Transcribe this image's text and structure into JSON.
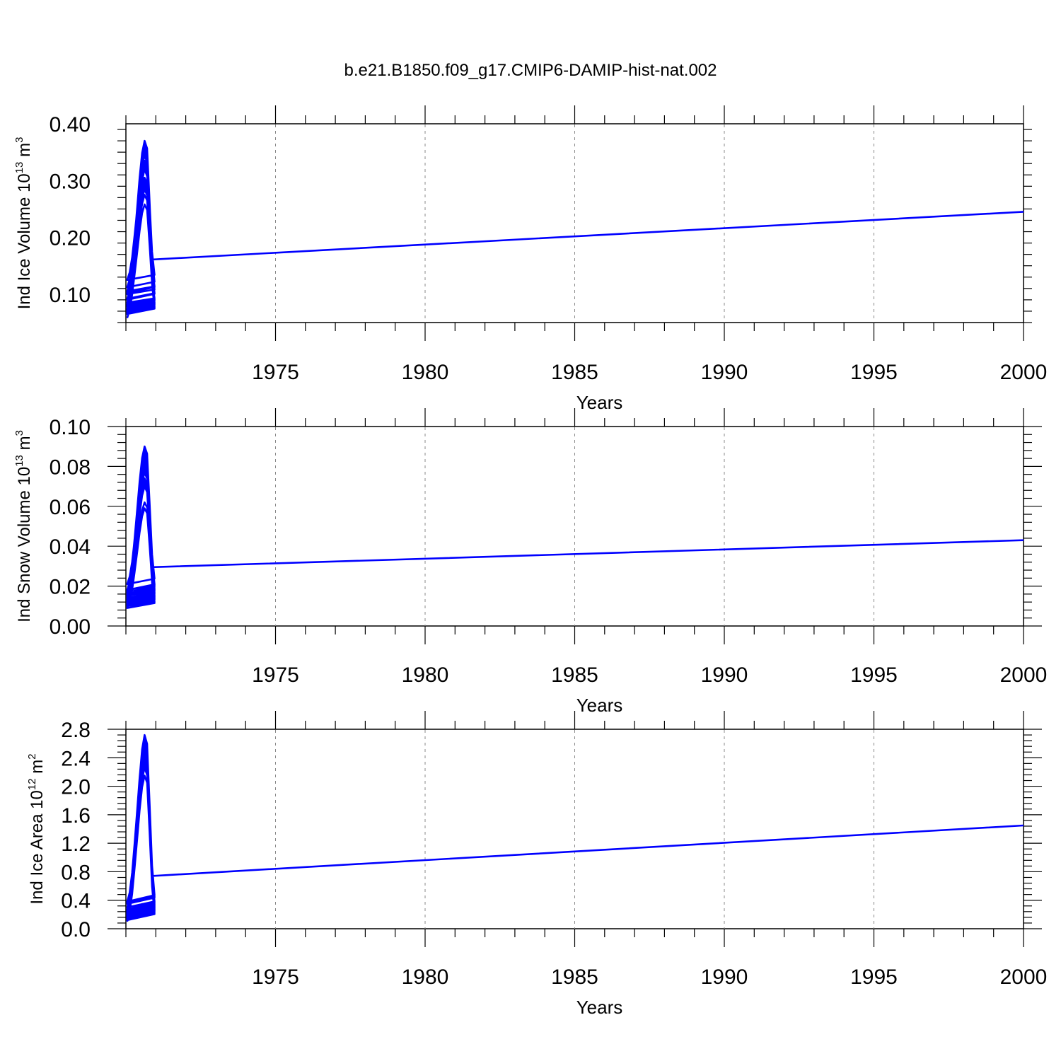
{
  "title": "b.e21.B1850.f09_g17.CMIP6-DAMIP-hist-nat.002",
  "colors": {
    "line": "#0000ff",
    "axis": "#000000",
    "grid": "#888888"
  },
  "chart_data": [
    {
      "type": "line",
      "title": "",
      "ylabel": "Ind Ice Volume 10",
      "ylabel_sup": "13",
      "ylabel_unit": " m",
      "ylabel_unit_sup": "3",
      "xlabel": "Years",
      "xlim": [
        1970.0,
        2000.0
      ],
      "ylim": [
        0.05,
        0.4
      ],
      "yticks": [
        0.1,
        0.2,
        0.3,
        0.4
      ],
      "ytick_labels": [
        "0.10",
        "0.20",
        "0.30",
        "0.40"
      ],
      "xticks": [
        1975,
        1980,
        1985,
        1990,
        1995,
        2000
      ],
      "xtick_labels": [
        "1975",
        "1980",
        "1985",
        "1990",
        "1995",
        "2000"
      ],
      "vlines": [
        1975,
        1980,
        1985,
        1990,
        1995
      ],
      "series": [
        {
          "name": "Ind Ice Volume",
          "color": "#0000ff",
          "monthly": true,
          "start_year": 1970,
          "peaks": [
            0.285,
            0.32,
            0.355,
            0.35,
            0.33,
            0.345,
            0.345,
            0.345,
            0.345,
            0.305,
            0.355,
            0.295,
            0.29,
            0.335,
            0.305,
            0.32,
            0.35,
            0.325,
            0.35,
            0.32,
            0.275,
            0.3,
            0.258,
            0.3,
            0.345,
            0.32,
            0.325,
            0.365,
            0.358,
            0.37
          ],
          "troughs": [
            0.058,
            0.075,
            0.08,
            0.112,
            0.125,
            0.08,
            0.125,
            0.078,
            0.08,
            0.065,
            0.08,
            0.07,
            0.068,
            0.082,
            0.092,
            0.1,
            0.105,
            0.09,
            0.075,
            0.07,
            0.073,
            0.085,
            0.065,
            0.078,
            0.072,
            0.073,
            0.068,
            0.08,
            0.09,
            0.102
          ],
          "end_value": 0.245
        }
      ]
    },
    {
      "type": "line",
      "title": "",
      "ylabel": "Ind Snow Volume 10",
      "ylabel_sup": "13",
      "ylabel_unit": " m",
      "ylabel_unit_sup": "3",
      "xlabel": "Years",
      "xlim": [
        1970.0,
        2000.0
      ],
      "ylim": [
        0.0,
        0.1
      ],
      "yticks": [
        0.0,
        0.02,
        0.04,
        0.06,
        0.08,
        0.1
      ],
      "ytick_labels": [
        "0.00",
        "0.02",
        "0.04",
        "0.06",
        "0.08",
        "0.10"
      ],
      "xticks": [
        1975,
        1980,
        1985,
        1990,
        1995,
        2000
      ],
      "xtick_labels": [
        "1975",
        "1980",
        "1985",
        "1990",
        "1995",
        "2000"
      ],
      "vlines": [
        1975,
        1980,
        1985,
        1990,
        1995
      ],
      "series": [
        {
          "name": "Ind Snow Volume",
          "color": "#0000ff",
          "monthly": true,
          "start_year": 1970,
          "peaks": [
            0.071,
            0.077,
            0.09,
            0.089,
            0.083,
            0.083,
            0.085,
            0.087,
            0.08,
            0.073,
            0.087,
            0.071,
            0.07,
            0.083,
            0.07,
            0.078,
            0.09,
            0.081,
            0.087,
            0.079,
            0.062,
            0.071,
            0.059,
            0.074,
            0.083,
            0.08,
            0.082,
            0.088,
            0.087,
            0.088
          ],
          "troughs": [
            0.009,
            0.012,
            0.012,
            0.018,
            0.021,
            0.011,
            0.018,
            0.014,
            0.016,
            0.011,
            0.014,
            0.012,
            0.011,
            0.013,
            0.017,
            0.016,
            0.018,
            0.015,
            0.012,
            0.01,
            0.011,
            0.01,
            0.009,
            0.012,
            0.011,
            0.011,
            0.012,
            0.015,
            0.015,
            0.013
          ],
          "end_value": 0.043
        }
      ]
    },
    {
      "type": "line",
      "title": "",
      "ylabel": "Ind Ice Area 10",
      "ylabel_sup": "12",
      "ylabel_unit": " m",
      "ylabel_unit_sup": "2",
      "xlabel": "Years",
      "xlim": [
        1970.0,
        2000.0
      ],
      "ylim": [
        0.0,
        2.8
      ],
      "yticks": [
        0.0,
        0.4,
        0.8,
        1.2,
        1.6,
        2.0,
        2.4,
        2.8
      ],
      "ytick_labels": [
        "0.0",
        "0.4",
        "0.8",
        "1.2",
        "1.6",
        "2.0",
        "2.4",
        "2.8"
      ],
      "xticks": [
        1975,
        1980,
        1985,
        1990,
        1995,
        2000
      ],
      "xtick_labels": [
        "1975",
        "1980",
        "1985",
        "1990",
        "1995",
        "2000"
      ],
      "vlines": [
        1975,
        1980,
        1985,
        1990,
        1995
      ],
      "series": [
        {
          "name": "Ind Ice Area",
          "color": "#0000ff",
          "monthly": true,
          "start_year": 1970,
          "peaks": [
            2.44,
            2.48,
            2.38,
            2.68,
            2.4,
            2.5,
            2.5,
            2.72,
            2.6,
            2.47,
            2.68,
            2.38,
            2.48,
            2.47,
            2.3,
            2.37,
            2.54,
            2.45,
            2.5,
            2.46,
            2.3,
            2.26,
            2.15,
            2.34,
            2.61,
            2.54,
            2.52,
            2.62,
            2.48,
            2.55
          ],
          "troughs": [
            0.1,
            0.18,
            0.27,
            0.37,
            0.38,
            0.16,
            0.35,
            0.22,
            0.2,
            0.17,
            0.24,
            0.2,
            0.14,
            0.2,
            0.27,
            0.25,
            0.3,
            0.25,
            0.16,
            0.17,
            0.16,
            0.2,
            0.12,
            0.15,
            0.16,
            0.21,
            0.17,
            0.22,
            0.27,
            0.23
          ],
          "end_value": 1.45
        }
      ]
    }
  ]
}
